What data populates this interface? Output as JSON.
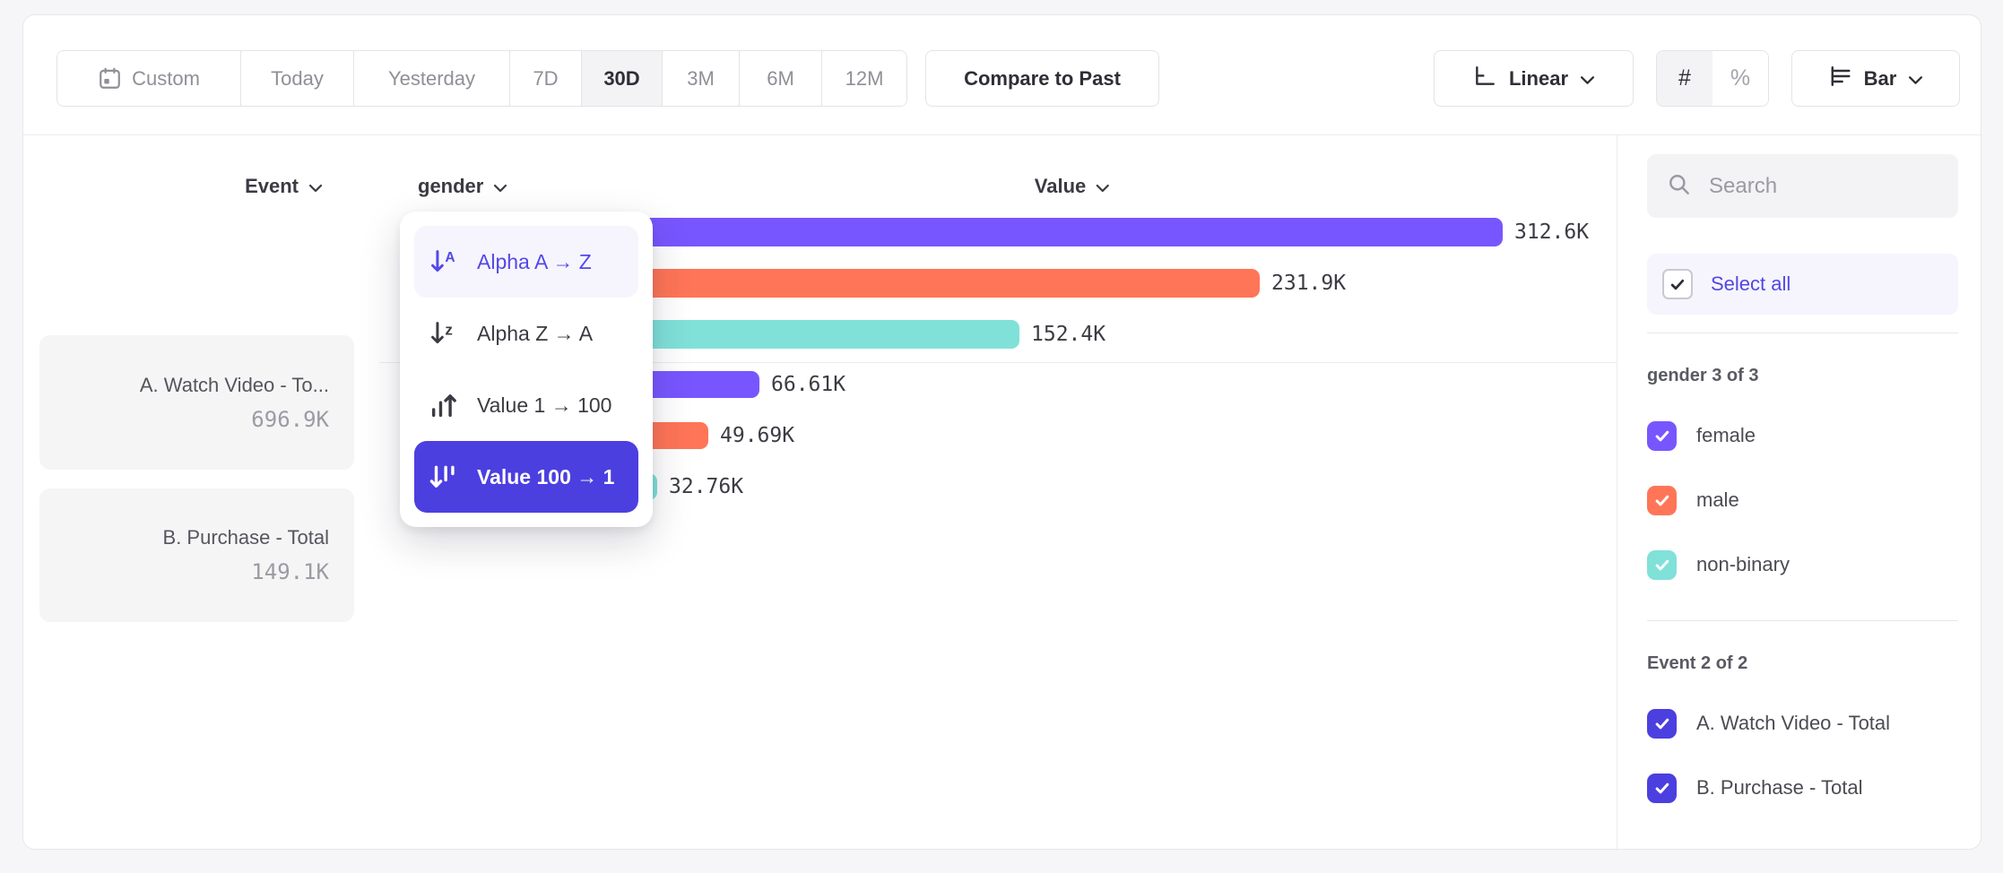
{
  "colors": {
    "purple": "#7856FF",
    "orange": "#FF7557",
    "teal": "#80E1D9",
    "indigo": "#4C3FE0",
    "link_purple": "#5348E8"
  },
  "toolbar": {
    "date_ranges": [
      "Custom",
      "Today",
      "Yesterday",
      "7D",
      "30D",
      "3M",
      "6M",
      "12M"
    ],
    "selected_range": "30D",
    "compare_button": "Compare to Past",
    "scale_selector": {
      "label": "Linear"
    },
    "value_format_toggle": {
      "options": [
        "#",
        "%"
      ],
      "selected": "#"
    },
    "chart_type_selector": {
      "label": "Bar"
    }
  },
  "columns": {
    "event_header": "Event",
    "breakdown_header": "gender",
    "value_header": "Value"
  },
  "events": [
    {
      "name": "A. Watch Video - To...",
      "value": "696.9K"
    },
    {
      "name": "B. Purchase - Total",
      "value": "149.1K"
    }
  ],
  "sort_menu": {
    "items": [
      {
        "label": "Alpha A → Z",
        "icon": "sort-alpha-asc-icon",
        "state": "hover"
      },
      {
        "label": "Alpha Z → A",
        "icon": "sort-alpha-desc-icon",
        "state": "default"
      },
      {
        "label": "Value 1 → 100",
        "icon": "sort-value-asc-icon",
        "state": "default"
      },
      {
        "label": "Value 100 → 1",
        "icon": "sort-value-desc-icon",
        "state": "selected"
      }
    ]
  },
  "chart_data": {
    "type": "bar",
    "orientation": "horizontal",
    "unit": "K",
    "category_axis_label": "gender",
    "value_axis_label": "Value",
    "series_axis_label": "Event",
    "groups": [
      {
        "event": "A. Watch Video - Total",
        "total": "696.9K",
        "bars": [
          {
            "category": "female",
            "value": 312.6,
            "label": "312.6K",
            "color": "#7856FF"
          },
          {
            "category": "male",
            "value": 231.9,
            "label": "231.9K",
            "color": "#FF7557"
          },
          {
            "category": "non-binary",
            "value": 152.4,
            "label": "152.4K",
            "color": "#80E1D9"
          }
        ]
      },
      {
        "event": "B. Purchase - Total",
        "total": "149.1K",
        "bars": [
          {
            "category": "female",
            "value": 66.61,
            "label": "66.61K",
            "color": "#7856FF"
          },
          {
            "category": "male",
            "value": 49.69,
            "label": "49.69K",
            "color": "#FF7557"
          },
          {
            "category": "non-binary",
            "value": 32.76,
            "label": "32.76K",
            "color": "#80E1D9"
          }
        ]
      }
    ]
  },
  "sidebar": {
    "search_placeholder": "Search",
    "select_all_label": "Select all",
    "sections": [
      {
        "title": "gender 3 of 3",
        "items": [
          {
            "label": "female",
            "color": "#7856FF",
            "checked": true
          },
          {
            "label": "male",
            "color": "#FF7557",
            "checked": true
          },
          {
            "label": "non-binary",
            "color": "#80E1D9",
            "checked": true
          }
        ]
      },
      {
        "title": "Event 2 of 2",
        "items": [
          {
            "label": "A. Watch Video - Total",
            "color": "#4C3FE0",
            "checked": true
          },
          {
            "label": "B. Purchase - Total",
            "color": "#4C3FE0",
            "checked": true
          }
        ]
      }
    ]
  }
}
